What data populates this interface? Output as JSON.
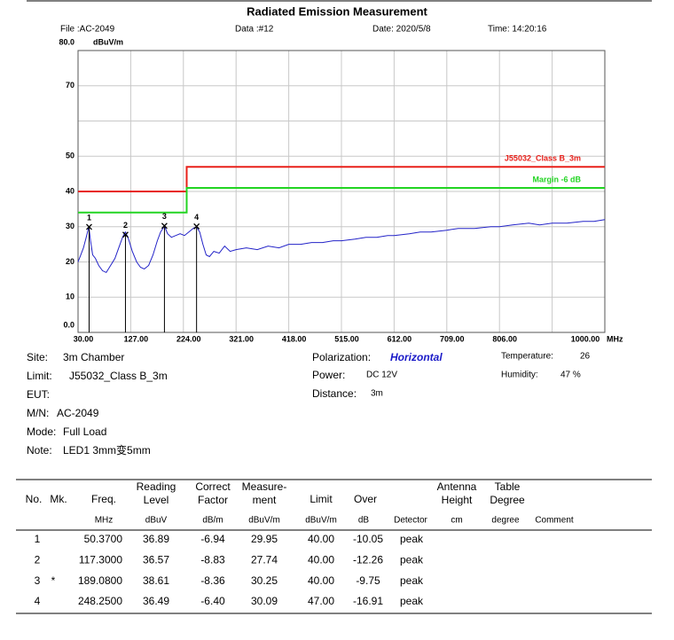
{
  "header": {
    "title": "Radiated Emission Measurement",
    "file": "File :AC-2049",
    "data": "Data :#12",
    "date": "Date: 2020/5/8",
    "time": "Time: 14:20:16"
  },
  "chart_data": {
    "type": "line",
    "y_label": "dBuV/m",
    "x_label": "MHz",
    "xlim": [
      30,
      1000
    ],
    "ylim": [
      0,
      80
    ],
    "grid": true,
    "xticks": [
      {
        "value": 30,
        "label": "30.00"
      },
      {
        "value": 127,
        "label": "127.00"
      },
      {
        "value": 224,
        "label": "224.00"
      },
      {
        "value": 321,
        "label": "321.00"
      },
      {
        "value": 418,
        "label": "418.00"
      },
      {
        "value": 515,
        "label": "515.00"
      },
      {
        "value": 612,
        "label": "612.00"
      },
      {
        "value": 709,
        "label": "709.00"
      },
      {
        "value": 806,
        "label": "806.00"
      },
      {
        "value": 903,
        "label": null
      },
      {
        "value": 1000,
        "label": "1000.00"
      }
    ],
    "yticks": [
      {
        "value": 0,
        "label": "0.0"
      },
      10,
      20,
      30,
      40,
      50,
      {
        "value": 60,
        "label": null
      },
      70,
      {
        "value": 80,
        "label": "80.0"
      }
    ],
    "series": [
      {
        "color": "#2323c8",
        "x": [
          30,
          35,
          40,
          45,
          50,
          53,
          57,
          62,
          68,
          75,
          82,
          90,
          98,
          105,
          112,
          117,
          122,
          130,
          138,
          145,
          152,
          160,
          168,
          176,
          182,
          189,
          195,
          202,
          210,
          218,
          226,
          234,
          242,
          248,
          254,
          260,
          266,
          272,
          280,
          290,
          300,
          310,
          321,
          340,
          360,
          380,
          400,
          418,
          440,
          460,
          480,
          500,
          515,
          540,
          560,
          580,
          600,
          612,
          640,
          660,
          680,
          709,
          730,
          760,
          790,
          806,
          830,
          860,
          880,
          903,
          930,
          960,
          980,
          1000
        ],
        "values": [
          20,
          22,
          24,
          27,
          30,
          26,
          22,
          21,
          19,
          17.5,
          17,
          19,
          21,
          24,
          27,
          28.5,
          27,
          23,
          20,
          18.5,
          18,
          19,
          22,
          26,
          28.5,
          30.2,
          28,
          27,
          27.5,
          28,
          27.5,
          28.5,
          29.5,
          30,
          28.5,
          25,
          22,
          21.5,
          23,
          22.5,
          24.5,
          23,
          23.5,
          24,
          23.5,
          24.5,
          24,
          25,
          25,
          25.5,
          25.5,
          26,
          26,
          26.5,
          27,
          27,
          27.5,
          27.5,
          28,
          28.5,
          28.5,
          29,
          29.5,
          29.5,
          30,
          30,
          30.5,
          31,
          30.5,
          31,
          31,
          31.5,
          31.5,
          32
        ]
      },
      {
        "name": "J55032_Class B_3m",
        "color": "#e8201a",
        "x": [
          30,
          230,
          230,
          1000
        ],
        "values": [
          40,
          40,
          47,
          47
        ]
      },
      {
        "name": "Margin -6 dB",
        "color": "#22d422",
        "x": [
          30,
          230,
          230,
          1000
        ],
        "values": [
          34,
          34,
          41,
          41
        ]
      }
    ],
    "markers": {
      "x": [
        50.37,
        117.3,
        189.08,
        248.25
      ],
      "values": [
        29.95,
        27.74,
        30.25,
        30.09
      ],
      "labels": [
        "1",
        "2",
        "3",
        "4"
      ]
    }
  },
  "info": {
    "left": [
      {
        "label": "Site:",
        "value": "3m Chamber"
      },
      {
        "label": "Limit:",
        "value": "J55032_Class B_3m"
      },
      {
        "label": "EUT:"
      },
      {
        "label": "M/N:",
        "value": "AC-2049"
      },
      {
        "label": "Mode:",
        "value": "Full Load"
      },
      {
        "label": "Note:",
        "value": "LED1 3mm变5mm"
      }
    ],
    "polarization": {
      "label": "Polarization:",
      "value": "Horizontal"
    },
    "power": {
      "label": "Power:",
      "value": "DC 12V"
    },
    "distance": {
      "label": "Distance:",
      "value": "3m"
    },
    "temperature": {
      "label": "Temperature:",
      "value": "26"
    },
    "humidity": {
      "label": "Humidity:",
      "value": "47 %"
    }
  },
  "table": {
    "headers": [
      [
        "No."
      ],
      [
        "Mk."
      ],
      [
        "Freq."
      ],
      [
        "Reading",
        "Level"
      ],
      [
        "Correct",
        "Factor"
      ],
      [
        "Measure-",
        "ment"
      ],
      [
        "Limit"
      ],
      [
        "Over"
      ],
      [
        "Antenna",
        "Height"
      ],
      [
        "Table",
        "Degree"
      ]
    ],
    "units": [
      "MHz",
      "dBuV",
      "dB/m",
      "dBuV/m",
      "dBuV/m",
      "dB",
      "Detector",
      "cm",
      "degree",
      "Comment"
    ],
    "rows": [
      [
        "1",
        null,
        "50.3700",
        "36.89",
        "-6.94",
        "29.95",
        "40.00",
        "-10.05",
        "peak"
      ],
      [
        "2",
        null,
        "117.3000",
        "36.57",
        "-8.83",
        "27.74",
        "40.00",
        "-12.26",
        "peak"
      ],
      [
        "3",
        "*",
        "189.0800",
        "38.61",
        "-8.36",
        "30.25",
        "40.00",
        "-9.75",
        "peak"
      ],
      [
        "4",
        null,
        "248.2500",
        "36.49",
        "-6.40",
        "30.09",
        "47.00",
        "-16.91",
        "peak"
      ]
    ]
  }
}
